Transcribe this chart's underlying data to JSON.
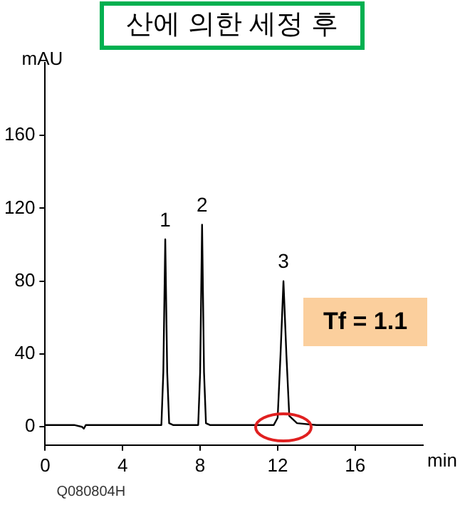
{
  "chart_data": {
    "type": "line",
    "title": "산에 의한 세정 후",
    "xlabel": "min",
    "ylabel": "mAU",
    "x": [
      0,
      1.5,
      1.9,
      2.0,
      2.1,
      3.0,
      4.0,
      6.0,
      6.1,
      6.2,
      6.3,
      6.4,
      6.6,
      7.9,
      8.0,
      8.1,
      8.2,
      8.3,
      8.5,
      11.8,
      12.0,
      12.15,
      12.3,
      12.45,
      12.6,
      13.0,
      14.0,
      19.5
    ],
    "series": [
      {
        "color": "#000000",
        "values": [
          1,
          1,
          0,
          -1,
          1,
          1,
          1,
          1,
          30,
          103,
          30,
          2,
          1,
          1,
          30,
          111,
          30,
          2,
          1,
          1,
          5,
          40,
          80,
          40,
          6,
          2,
          1,
          1
        ]
      }
    ],
    "xlim": [
      0,
      19.5
    ],
    "xticks": [
      0,
      4,
      8,
      12,
      16
    ],
    "ylim": [
      -10,
      200
    ],
    "yticks": [
      0,
      40,
      80,
      120,
      160
    ],
    "grid": false,
    "legend": false,
    "marker": "none",
    "line_style": "solid",
    "annotations": [
      {
        "text": "1",
        "x": 6.2,
        "y": 103
      },
      {
        "text": "2",
        "x": 8.1,
        "y": 111
      },
      {
        "text": "3",
        "x": 12.3,
        "y": 80
      },
      "Tf = 1.1",
      "Q080804H"
    ]
  }
}
